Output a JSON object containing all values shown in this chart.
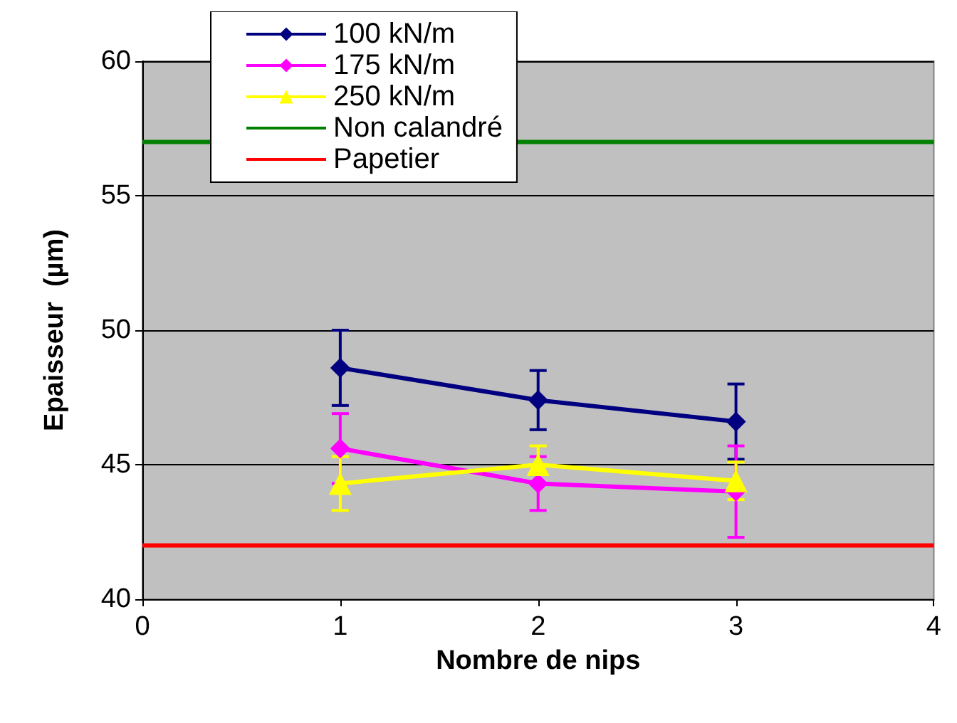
{
  "chart_data": {
    "type": "line",
    "xlabel": "Nombre de nips",
    "ylabel": "Epaisseur  (µm)",
    "x": [
      1,
      2,
      3
    ],
    "series": [
      {
        "name": "100 kN/m",
        "color": "#000080",
        "marker": "diamond",
        "values": [
          48.6,
          47.4,
          46.6
        ],
        "errors": [
          1.4,
          1.1,
          1.4
        ]
      },
      {
        "name": "175 kN/m",
        "color": "#ff00ff",
        "marker": "diamond",
        "values": [
          45.6,
          44.3,
          44.0
        ],
        "errors": [
          1.3,
          1.0,
          1.7
        ]
      },
      {
        "name": "250 kN/m",
        "color": "#ffff00",
        "marker": "triangle",
        "values": [
          44.3,
          45.0,
          44.4
        ],
        "errors": [
          1.0,
          0.7,
          0.7
        ]
      }
    ],
    "ref_lines": [
      {
        "axis": "y",
        "value": 57,
        "label": "Non calandré",
        "color": "#008000"
      },
      {
        "axis": "y",
        "value": 42,
        "label": "Papetier",
        "color": "#ff0000"
      }
    ],
    "xlim": [
      0,
      4
    ],
    "xticks": [
      0,
      1,
      2,
      3,
      4
    ],
    "ylim": [
      40,
      60
    ],
    "yticks": [
      40,
      45,
      50,
      55,
      60
    ],
    "grid": "y",
    "legend": "top left"
  }
}
